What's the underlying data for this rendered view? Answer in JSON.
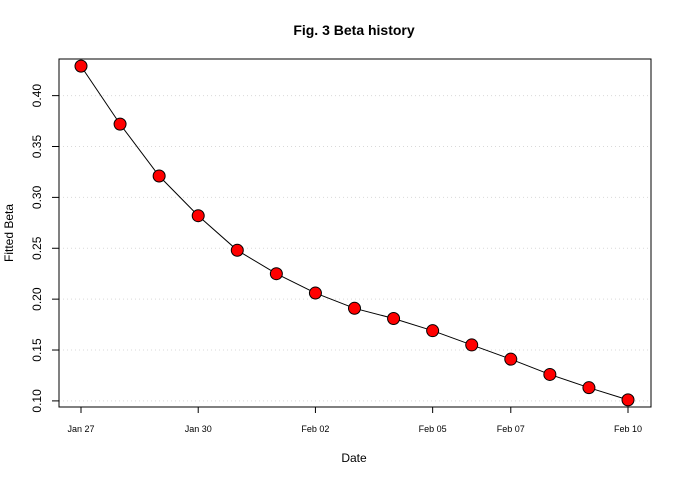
{
  "chart_data": {
    "type": "line",
    "title": "Fig. 3 Beta history",
    "xlabel": "Date",
    "ylabel": "Fitted Beta",
    "x": [
      "2024-01-27",
      "2024-01-28",
      "2024-01-29",
      "2024-01-30",
      "2024-01-31",
      "2024-02-01",
      "2024-02-02",
      "2024-02-03",
      "2024-02-04",
      "2024-02-05",
      "2024-02-06",
      "2024-02-07",
      "2024-02-08",
      "2024-02-09",
      "2024-02-10"
    ],
    "series": [
      {
        "values": [
          0.429,
          0.372,
          0.321,
          0.282,
          0.248,
          0.225,
          0.206,
          0.191,
          0.181,
          0.169,
          0.155,
          0.141,
          0.126,
          0.113,
          0.101
        ]
      }
    ],
    "xticks": [
      {
        "x": "2024-01-27",
        "label": "Jan 27"
      },
      {
        "x": "2024-01-30",
        "label": "Jan 30"
      },
      {
        "x": "2024-02-02",
        "label": "Feb 02"
      },
      {
        "x": "2024-02-05",
        "label": "Feb 05"
      },
      {
        "x": "2024-02-07",
        "label": "Feb 07"
      },
      {
        "x": "2024-02-10",
        "label": "Feb 10"
      }
    ],
    "yticks": [
      0.1,
      0.15,
      0.2,
      0.25,
      0.3,
      0.35,
      0.4
    ],
    "ytick_labels": [
      "0.10",
      "0.15",
      "0.20",
      "0.25",
      "0.30",
      "0.35",
      "0.40"
    ],
    "xlim": [
      "2024-01-26",
      "2024-02-10"
    ],
    "ylim": [
      0.094,
      0.436
    ],
    "grid": true,
    "colors": {
      "marker_fill": "#ff0000",
      "line": "#000000",
      "grid": "#d9d9d9"
    }
  }
}
